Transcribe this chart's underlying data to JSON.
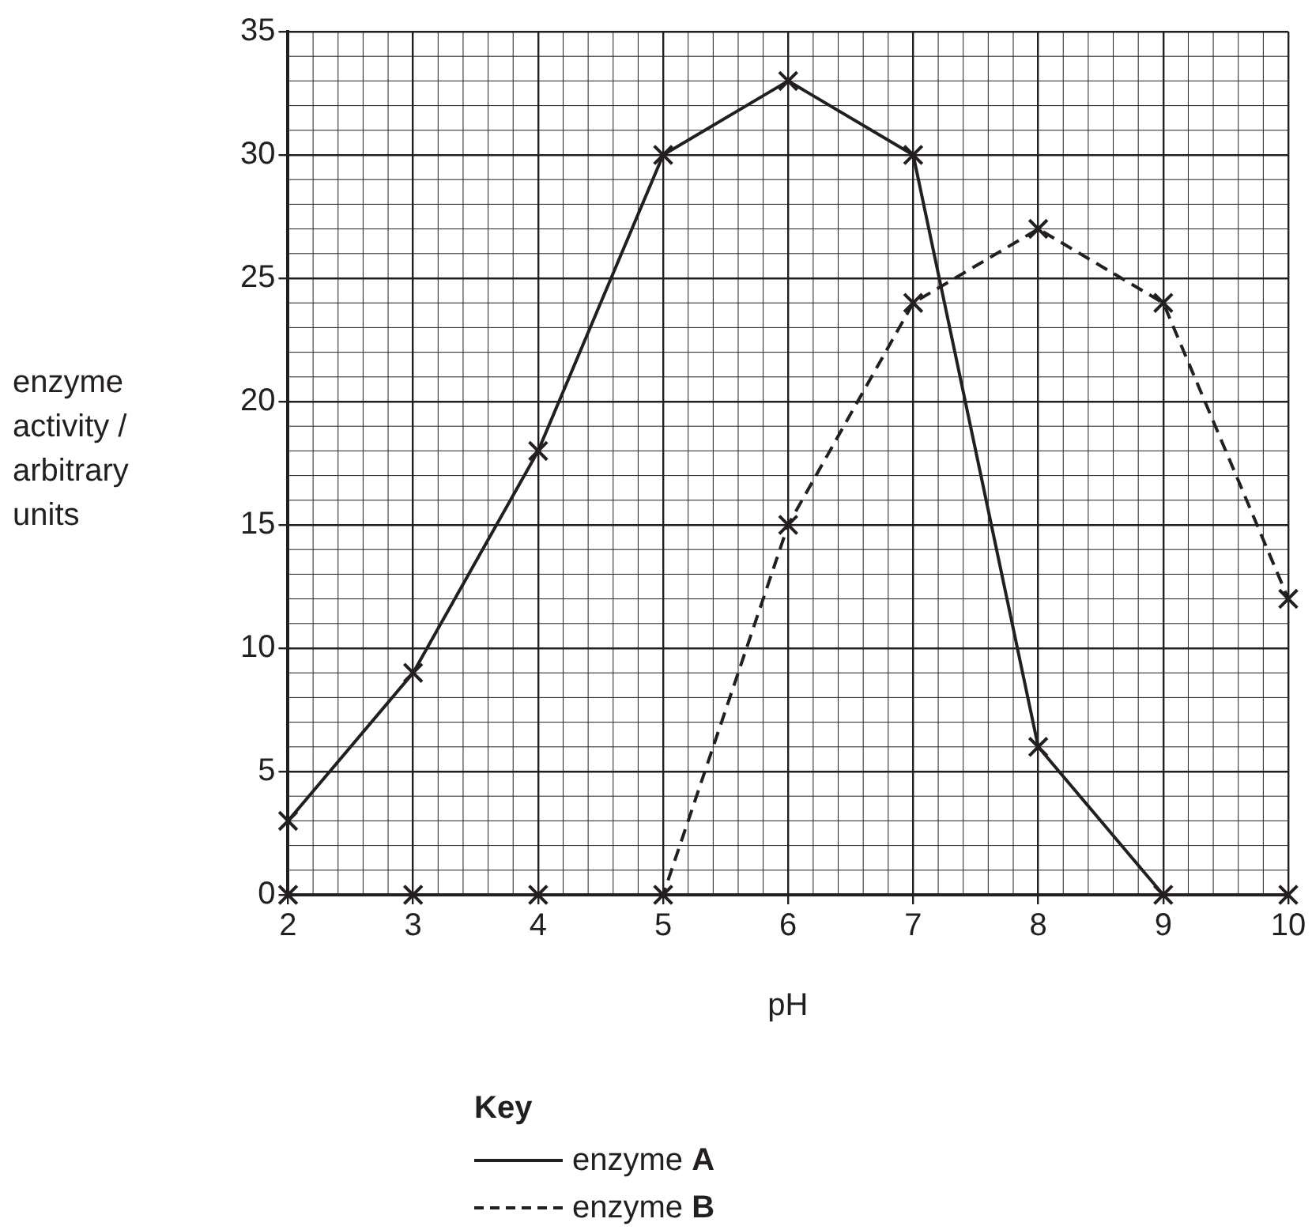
{
  "chart_data": {
    "type": "line",
    "xlabel": "pH",
    "ylabel": "enzyme activity / arbitrary units",
    "legend_title": "Key",
    "x": [
      2,
      3,
      4,
      5,
      6,
      7,
      8,
      9,
      10
    ],
    "series": [
      {
        "name": "enzyme A",
        "color": "#231f20",
        "line_style": "solid",
        "values": [
          3,
          9,
          18,
          30,
          33,
          30,
          6,
          0,
          0
        ]
      },
      {
        "name": "enzyme B",
        "color": "#231f20",
        "line_style": "dashed",
        "values": [
          0,
          0,
          0,
          0,
          15,
          24,
          27,
          24,
          12
        ]
      }
    ],
    "xlim": [
      2,
      10
    ],
    "xticks": [
      2,
      3,
      4,
      5,
      6,
      7,
      8,
      9,
      10
    ],
    "ylim": [
      0,
      35
    ],
    "yticks": [
      0,
      5,
      10,
      15,
      20,
      25,
      30,
      35
    ],
    "grid": true,
    "marker": "cross",
    "legend": "bottom"
  }
}
